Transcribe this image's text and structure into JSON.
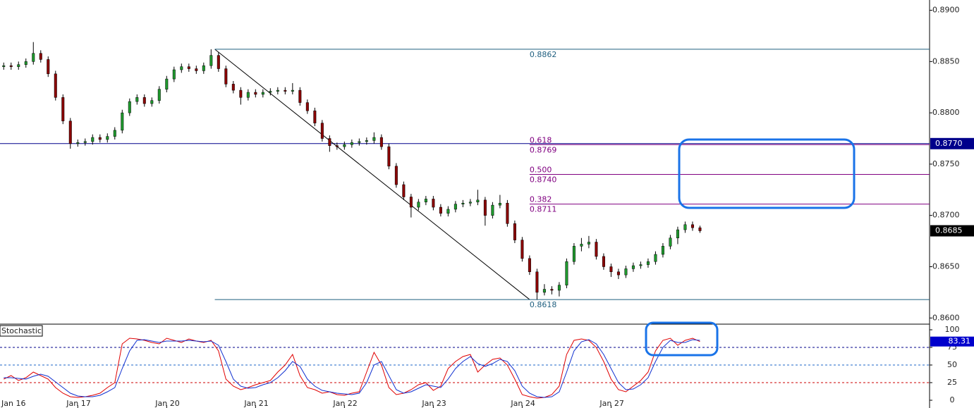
{
  "chart_data": [
    {
      "type": "candlestick",
      "x": [
        4,
        6,
        8,
        10,
        12,
        14,
        16,
        18,
        20,
        22,
        24,
        26,
        28,
        30,
        32,
        34,
        36,
        38,
        40,
        42,
        44,
        46,
        48,
        50,
        52,
        54,
        56,
        58,
        60,
        62,
        64,
        66,
        68,
        70,
        72,
        74,
        76,
        78,
        80,
        82,
        84,
        86,
        88,
        90,
        92,
        94,
        96,
        98,
        100,
        102,
        104,
        106,
        108,
        110,
        112,
        114,
        116,
        118,
        120,
        122,
        124,
        126,
        128,
        130,
        132,
        134,
        136,
        138,
        140,
        142,
        144,
        146,
        148,
        150,
        152,
        154,
        156,
        158,
        160,
        162,
        164,
        166,
        168,
        170,
        172,
        174,
        176,
        178,
        180,
        182,
        184,
        186,
        188,
        190,
        192
      ],
      "open": [
        0.8845,
        0.8846,
        0.8845,
        0.8847,
        0.885,
        0.8858,
        0.8852,
        0.8838,
        0.8815,
        0.8792,
        0.877,
        0.8771,
        0.8772,
        0.8776,
        0.8774,
        0.8777,
        0.8783,
        0.88,
        0.8811,
        0.8815,
        0.8809,
        0.8812,
        0.8823,
        0.8833,
        0.8842,
        0.8845,
        0.8843,
        0.8841,
        0.8846,
        0.8856,
        0.8843,
        0.8828,
        0.8822,
        0.8815,
        0.882,
        0.8818,
        0.882,
        0.8821,
        0.8822,
        0.8821,
        0.8822,
        0.881,
        0.8802,
        0.879,
        0.8775,
        0.8768,
        0.8767,
        0.8769,
        0.8771,
        0.8772,
        0.8773,
        0.8776,
        0.8767,
        0.8748,
        0.873,
        0.8718,
        0.8708,
        0.8713,
        0.8716,
        0.8708,
        0.8702,
        0.8706,
        0.8711,
        0.8712,
        0.8713,
        0.8715,
        0.87,
        0.871,
        0.8712,
        0.8692,
        0.8676,
        0.8658,
        0.8645,
        0.8625,
        0.8628,
        0.8627,
        0.8632,
        0.8655,
        0.867,
        0.8672,
        0.8674,
        0.866,
        0.865,
        0.8645,
        0.8642,
        0.8648,
        0.8651,
        0.8652,
        0.8655,
        0.8662,
        0.867,
        0.8678,
        0.8686,
        0.8691,
        0.8688
      ],
      "high": [
        0.8849,
        0.8849,
        0.885,
        0.8853,
        0.8869,
        0.8861,
        0.8855,
        0.8841,
        0.8818,
        0.8795,
        0.8774,
        0.8775,
        0.8779,
        0.8779,
        0.878,
        0.8786,
        0.8803,
        0.8814,
        0.8818,
        0.8818,
        0.8815,
        0.8826,
        0.8836,
        0.8845,
        0.8848,
        0.8848,
        0.8846,
        0.8849,
        0.8862,
        0.8859,
        0.8846,
        0.8831,
        0.8825,
        0.8823,
        0.8823,
        0.8823,
        0.8824,
        0.8825,
        0.8825,
        0.8829,
        0.8825,
        0.8813,
        0.8805,
        0.8793,
        0.8778,
        0.8771,
        0.8772,
        0.8774,
        0.8775,
        0.8776,
        0.8781,
        0.8779,
        0.877,
        0.8751,
        0.8733,
        0.8721,
        0.8716,
        0.8719,
        0.8719,
        0.8711,
        0.8709,
        0.8714,
        0.8715,
        0.8716,
        0.8725,
        0.8718,
        0.8713,
        0.872,
        0.8715,
        0.8695,
        0.8679,
        0.8661,
        0.8648,
        0.8633,
        0.8631,
        0.8635,
        0.8658,
        0.8673,
        0.8678,
        0.868,
        0.8677,
        0.8663,
        0.8653,
        0.8648,
        0.8651,
        0.8654,
        0.8655,
        0.8658,
        0.8665,
        0.8673,
        0.8681,
        0.8689,
        0.8694,
        0.8694,
        0.869
      ],
      "low": [
        0.8842,
        0.8842,
        0.8842,
        0.8844,
        0.8847,
        0.8849,
        0.8835,
        0.8812,
        0.8789,
        0.8765,
        0.8767,
        0.8768,
        0.8769,
        0.8771,
        0.8771,
        0.8774,
        0.878,
        0.8797,
        0.8808,
        0.8806,
        0.8806,
        0.8809,
        0.882,
        0.883,
        0.8839,
        0.884,
        0.8838,
        0.8838,
        0.8843,
        0.884,
        0.8825,
        0.8819,
        0.8808,
        0.8812,
        0.8815,
        0.8815,
        0.8817,
        0.8818,
        0.8818,
        0.8818,
        0.8807,
        0.8799,
        0.8787,
        0.8772,
        0.8762,
        0.8764,
        0.8764,
        0.8766,
        0.8768,
        0.8769,
        0.877,
        0.8764,
        0.8745,
        0.8727,
        0.8715,
        0.8698,
        0.8705,
        0.871,
        0.8705,
        0.8699,
        0.8699,
        0.8703,
        0.8708,
        0.8709,
        0.871,
        0.869,
        0.8697,
        0.8707,
        0.8689,
        0.8673,
        0.8655,
        0.8642,
        0.8618,
        0.8622,
        0.8623,
        0.8621,
        0.8629,
        0.8652,
        0.8665,
        0.8668,
        0.8657,
        0.8647,
        0.864,
        0.8638,
        0.8639,
        0.8645,
        0.8648,
        0.8649,
        0.8652,
        0.8659,
        0.8667,
        0.8672,
        0.8683,
        0.8685,
        0.8683
      ],
      "close": [
        0.8846,
        0.8845,
        0.8847,
        0.885,
        0.8858,
        0.8852,
        0.8838,
        0.8815,
        0.8792,
        0.877,
        0.8771,
        0.8772,
        0.8776,
        0.8774,
        0.8777,
        0.8783,
        0.88,
        0.8811,
        0.8815,
        0.8809,
        0.8812,
        0.8823,
        0.8833,
        0.8842,
        0.8845,
        0.8843,
        0.8841,
        0.8846,
        0.8856,
        0.8843,
        0.8828,
        0.8822,
        0.8815,
        0.882,
        0.8818,
        0.882,
        0.8821,
        0.8822,
        0.8821,
        0.8822,
        0.881,
        0.8802,
        0.879,
        0.8775,
        0.8768,
        0.8767,
        0.8769,
        0.8771,
        0.8772,
        0.8773,
        0.8776,
        0.8767,
        0.8748,
        0.873,
        0.8718,
        0.8708,
        0.8713,
        0.8716,
        0.8708,
        0.8702,
        0.8706,
        0.8711,
        0.8712,
        0.8713,
        0.8715,
        0.87,
        0.871,
        0.8712,
        0.8692,
        0.8676,
        0.8658,
        0.8645,
        0.8625,
        0.8628,
        0.8627,
        0.8632,
        0.8655,
        0.867,
        0.8672,
        0.8674,
        0.866,
        0.865,
        0.8645,
        0.8642,
        0.8648,
        0.8651,
        0.8652,
        0.8655,
        0.8662,
        0.867,
        0.8678,
        0.8686,
        0.8691,
        0.8688,
        0.8685
      ],
      "colors": {
        "up": "#1f9a2e",
        "down": "#8b0000",
        "wick": "#000000"
      },
      "xlim": [
        3,
        254
      ],
      "xticks": [
        {
          "value": 0,
          "label": "Jan 16"
        },
        {
          "value": 24,
          "label": "Jan 17"
        },
        {
          "value": 48,
          "label": "Jan 20"
        },
        {
          "value": 72,
          "label": "Jan 21"
        },
        {
          "value": 96,
          "label": "Jan 22"
        },
        {
          "value": 120,
          "label": "Jan 23"
        },
        {
          "value": 144,
          "label": "Jan 24"
        },
        {
          "value": 168,
          "label": "Jan 27"
        }
      ],
      "ylim": [
        0.8594,
        0.891
      ],
      "yticks": [
        {
          "value": 0.86,
          "label": "0.8600"
        },
        {
          "value": 0.865,
          "label": "0.8650"
        },
        {
          "value": 0.87,
          "label": "0.8700"
        },
        {
          "value": 0.875,
          "label": "0.8750"
        },
        {
          "value": 0.88,
          "label": "0.8800"
        },
        {
          "value": 0.885,
          "label": "0.8850"
        },
        {
          "value": 0.89,
          "label": "0.8900"
        }
      ],
      "hline": {
        "value": {
          "value": 0.877,
          "label": "0.8770"
        },
        "color": "#00008b"
      },
      "fibonacci": {
        "from_x": 61,
        "to_x": 146,
        "high": 0.8862,
        "low": 0.8618,
        "color": "#800080",
        "range_color": "#1f5f7f",
        "levels": [
          {
            "ratio": 0.618,
            "price": 0.8769
          },
          {
            "ratio": {
              "value": 0.5,
              "label": "0.500"
            },
            "price": {
              "value": 0.874,
              "label": "0.8740"
            }
          },
          {
            "ratio": 0.382,
            "price": 0.8711
          }
        ]
      }
    },
    {
      "type": "line",
      "title": "Stochastic",
      "ylim": [
        -11,
        107
      ],
      "yticks": [
        0,
        25,
        50,
        75,
        100
      ],
      "levels": [
        {
          "value": 75,
          "color": "#00008b"
        },
        {
          "value": 50,
          "color": "#1e66c8"
        },
        {
          "value": 25,
          "color": "#cc0000"
        }
      ],
      "series": [
        {
          "color": "#e00000",
          "values": [
            30,
            35,
            28,
            32,
            40,
            35,
            30,
            18,
            10,
            5,
            4,
            5,
            7,
            10,
            18,
            25,
            80,
            88,
            87,
            85,
            82,
            80,
            88,
            85,
            82,
            87,
            84,
            82,
            85,
            70,
            30,
            20,
            15,
            18,
            22,
            25,
            28,
            40,
            50,
            65,
            35,
            18,
            15,
            10,
            12,
            8,
            7,
            10,
            12,
            40,
            68,
            50,
            18,
            8,
            10,
            15,
            22,
            25,
            14,
            20,
            45,
            55,
            62,
            65,
            40,
            50,
            58,
            60,
            50,
            30,
            8,
            5,
            3,
            4,
            8,
            20,
            65,
            85,
            87,
            85,
            75,
            55,
            30,
            15,
            12,
            20,
            28,
            40,
            70,
            85,
            88,
            78,
            85,
            88,
            83.31
          ]
        },
        {
          "color": "#1030d0",
          "values": [
            32,
            32,
            31,
            30,
            34,
            37,
            34,
            26,
            18,
            10,
            6,
            5,
            5,
            7,
            12,
            18,
            45,
            70,
            85,
            86,
            84,
            82,
            84,
            84,
            84,
            85,
            84,
            83,
            84,
            78,
            55,
            30,
            20,
            17,
            18,
            22,
            25,
            32,
            42,
            55,
            48,
            30,
            20,
            14,
            12,
            10,
            9,
            8,
            10,
            25,
            50,
            55,
            35,
            15,
            10,
            12,
            17,
            22,
            20,
            18,
            30,
            45,
            55,
            62,
            52,
            48,
            52,
            58,
            55,
            42,
            20,
            10,
            5,
            4,
            5,
            12,
            40,
            70,
            83,
            86,
            80,
            65,
            45,
            25,
            15,
            16,
            22,
            32,
            55,
            75,
            85,
            82,
            82,
            86,
            85
          ]
        }
      ]
    }
  ]
}
